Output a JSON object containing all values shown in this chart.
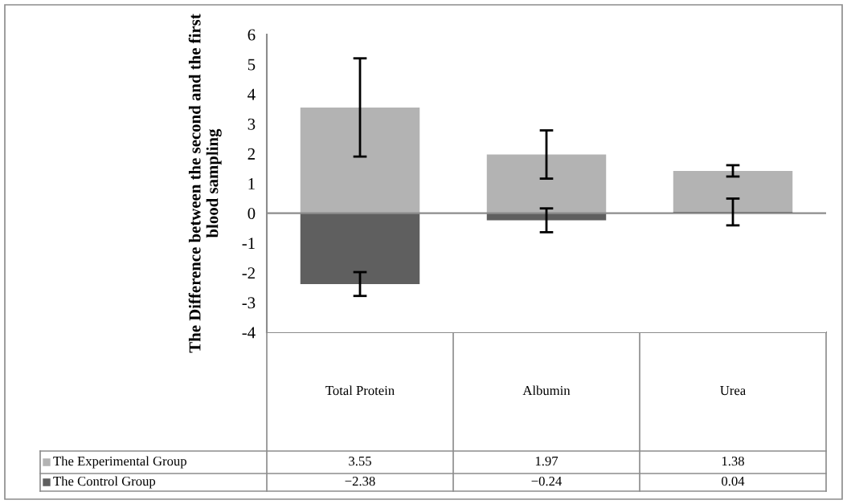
{
  "chart_data": {
    "type": "bar",
    "ylabel": "The Difference between the second and the first blood sampling",
    "categories": [
      "Total Protein",
      "Albumin",
      "Urea"
    ],
    "series": [
      {
        "name": "The Control Group",
        "color": "#5f5f5f",
        "values": [
          -2.38,
          -0.24,
          0.04
        ],
        "errors": [
          0.4,
          0.4,
          0.45
        ]
      },
      {
        "name": "The Experimental Group",
        "color": "#b3b3b3",
        "values": [
          3.55,
          1.97,
          1.38
        ],
        "errors": [
          1.65,
          0.81,
          0.19
        ]
      }
    ],
    "stacked": true,
    "ylim": [
      -4,
      6
    ],
    "yticks": [
      {
        "value": -4,
        "label": "-4"
      },
      {
        "value": -3,
        "label": "-3"
      },
      {
        "value": -2,
        "label": "-2"
      },
      {
        "value": -1,
        "label": "-1"
      },
      0,
      1,
      2,
      3,
      4,
      5,
      6
    ],
    "data_labels": true,
    "legend": "bottom"
  }
}
